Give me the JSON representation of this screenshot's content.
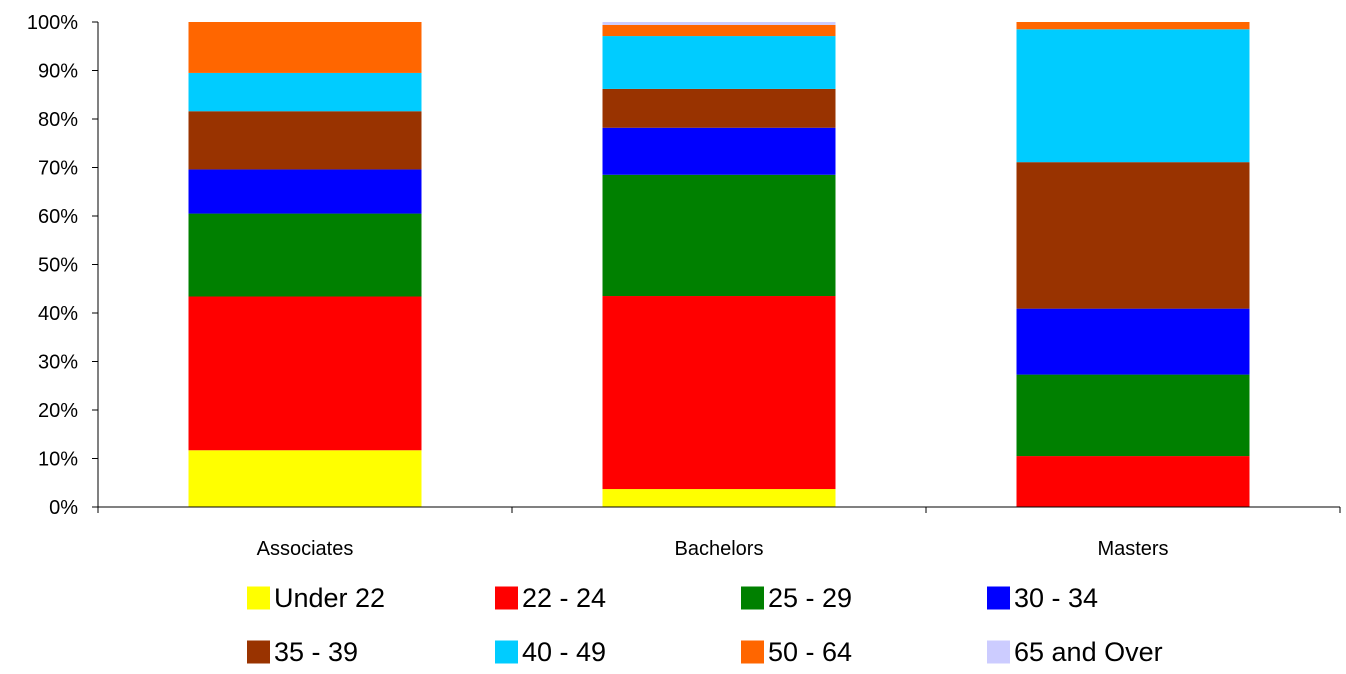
{
  "chart_data": {
    "type": "bar",
    "stacked": true,
    "normalized": true,
    "categories": [
      "Associates",
      "Bachelors",
      "Masters"
    ],
    "series": [
      {
        "name": "Under 22",
        "color": "#FFFF00",
        "values": [
          11.7,
          3.7,
          0.0
        ]
      },
      {
        "name": "22 - 24",
        "color": "#FF0000",
        "values": [
          31.7,
          39.8,
          10.5
        ]
      },
      {
        "name": "25 - 29",
        "color": "#008000",
        "values": [
          17.1,
          25.0,
          16.8
        ]
      },
      {
        "name": "30 - 34",
        "color": "#0000FF",
        "values": [
          9.1,
          9.7,
          13.6
        ]
      },
      {
        "name": "35 - 39",
        "color": "#993300",
        "values": [
          12.0,
          8.0,
          30.2
        ]
      },
      {
        "name": "40 - 49",
        "color": "#00CCFF",
        "values": [
          7.9,
          10.9,
          27.4
        ]
      },
      {
        "name": "50 - 64",
        "color": "#FF6600",
        "values": [
          10.5,
          2.3,
          1.5
        ]
      },
      {
        "name": "65 and Over",
        "color": "#CCCCFF",
        "values": [
          0.0,
          0.6,
          0.0
        ]
      }
    ],
    "ylim": [
      0,
      100
    ],
    "yticks": [
      "0%",
      "10%",
      "20%",
      "30%",
      "40%",
      "50%",
      "60%",
      "70%",
      "80%",
      "90%",
      "100%"
    ],
    "grid": false,
    "legend_position": "bottom"
  }
}
